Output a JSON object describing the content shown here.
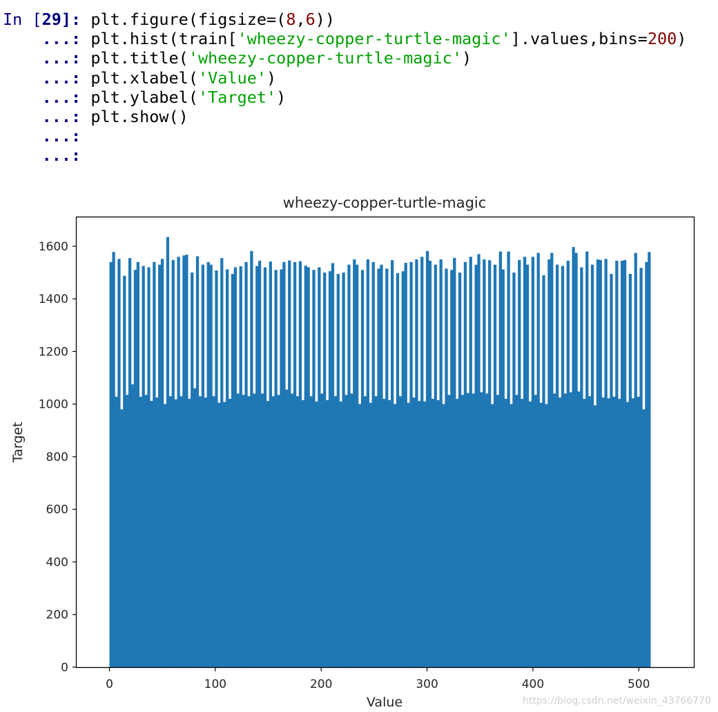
{
  "cell": {
    "prompt_in": "In [",
    "prompt_num": "29",
    "prompt_close": "]:",
    "cont_prompt": "...:",
    "lines": [
      [
        {
          "t": "plt.figure(figsize=(",
          "c": "p"
        },
        {
          "t": "8",
          "c": "n"
        },
        {
          "t": ",",
          "c": "p"
        },
        {
          "t": "6",
          "c": "n"
        },
        {
          "t": "))",
          "c": "p"
        }
      ],
      [
        {
          "t": "plt.hist(train[",
          "c": "p"
        },
        {
          "t": "'wheezy-copper-turtle-magic'",
          "c": "s"
        },
        {
          "t": "].values,bins=",
          "c": "p"
        },
        {
          "t": "200",
          "c": "n"
        },
        {
          "t": ")",
          "c": "p"
        }
      ],
      [
        {
          "t": "plt.title(",
          "c": "p"
        },
        {
          "t": "'wheezy-copper-turtle-magic'",
          "c": "s"
        },
        {
          "t": ")",
          "c": "p"
        }
      ],
      [
        {
          "t": "plt.xlabel(",
          "c": "p"
        },
        {
          "t": "'Value'",
          "c": "s"
        },
        {
          "t": ")",
          "c": "p"
        }
      ],
      [
        {
          "t": "plt.ylabel(",
          "c": "p"
        },
        {
          "t": "'Target'",
          "c": "s"
        },
        {
          "t": ")",
          "c": "p"
        }
      ],
      [
        {
          "t": "plt.show()",
          "c": "p"
        }
      ],
      [],
      []
    ]
  },
  "chart_data": {
    "type": "bar",
    "title": "wheezy-copper-turtle-magic",
    "xlabel": "Value",
    "ylabel": "Target",
    "xlim": [
      -31,
      552
    ],
    "ylim": [
      0,
      1710
    ],
    "xticks": [
      0,
      100,
      200,
      300,
      400,
      500
    ],
    "yticks": [
      0,
      200,
      400,
      600,
      800,
      1000,
      1200,
      1400,
      1600
    ],
    "bins": 200,
    "range": [
      0,
      511
    ],
    "color": "#1f77b4",
    "tall_values": [
      1540,
      1578,
      1552,
      1488,
      1555,
      1510,
      1540,
      1525,
      1520,
      1540,
      1530,
      1552,
      1635,
      1548,
      1560,
      1565,
      1568,
      1500,
      1562,
      1530,
      1540,
      1530,
      1508,
      1555,
      1512,
      1495,
      1520,
      1524,
      1540,
      1582,
      1525,
      1545,
      1520,
      1542,
      1510,
      1512,
      1540,
      1546,
      1540,
      1543,
      1526,
      1520,
      1510,
      1520,
      1500,
      1505,
      1536,
      1495,
      1500,
      1530,
      1550,
      1530,
      1510,
      1550,
      1540,
      1515,
      1530,
      1515,
      1547,
      1498,
      1505,
      1537,
      1540,
      1550,
      1560,
      1582,
      1545,
      1530,
      1550,
      1515,
      1510,
      1556,
      1500,
      1540,
      1560,
      1530,
      1570,
      1550,
      1547,
      1530,
      1580,
      1512,
      1580,
      1500,
      1548,
      1560,
      1530,
      1560,
      1575,
      1490,
      1550,
      1575,
      1530,
      1525,
      1545,
      1597,
      1575,
      1520,
      1580,
      1530,
      1550,
      1548,
      1552,
      1495,
      1545,
      1545,
      1548,
      1495,
      1575,
      1518
    ],
    "short_values": [
      1028,
      980,
      1035,
      1075,
      1028,
      1035,
      1012,
      1025,
      1000,
      1030,
      1018,
      1030,
      1020,
      1060,
      1030,
      1025,
      1030,
      1005,
      1008,
      1020,
      1040,
      1035,
      1030,
      1040,
      1040,
      1012,
      1030,
      1035,
      1055,
      1040,
      1030,
      1015,
      1030,
      1010,
      1040,
      1015,
      1030,
      1010,
      1035,
      1040,
      1000,
      1030,
      1005,
      1030,
      1020,
      1015,
      1000,
      1030,
      1005,
      1025,
      1012,
      1010,
      1020,
      1015,
      1000,
      1035,
      1020,
      1035,
      1042,
      1040,
      1045,
      1040,
      1000,
      1035,
      1020,
      1000,
      1035,
      1020,
      1010,
      1035,
      1005,
      1000,
      1040,
      1025,
      1040,
      1045,
      1048,
      1020,
      1030,
      995,
      1025,
      1022,
      1028,
      1020,
      1008,
      1022
    ]
  },
  "watermark": "https://blog.csdn.net/weixin_43766770"
}
